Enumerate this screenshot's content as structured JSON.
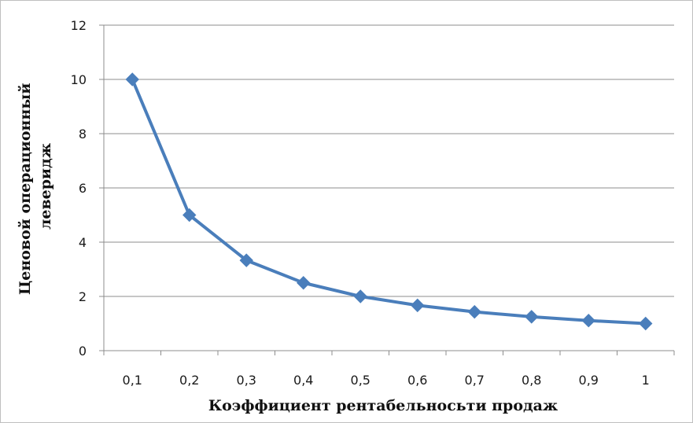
{
  "chart_data": {
    "type": "line",
    "title": "",
    "xlabel": "Коэффициент рентабельносьти продаж",
    "ylabel_lines": [
      "Ценовой операционный",
      "леверидж"
    ],
    "categories": [
      "0,1",
      "0,2",
      "0,3",
      "0,4",
      "0,5",
      "0,6",
      "0,7",
      "0,8",
      "0,9",
      "1"
    ],
    "series": [
      {
        "values": [
          10,
          5,
          3.33,
          2.5,
          2,
          1.67,
          1.43,
          1.25,
          1.11,
          1
        ]
      }
    ],
    "ylim": [
      0,
      12
    ],
    "yticks": [
      0,
      2,
      4,
      6,
      8,
      10,
      12
    ],
    "ytick_labels": [
      "0",
      "2",
      "4",
      "6",
      "8",
      "10",
      "12"
    ],
    "grid": "horizontal",
    "legend": "none",
    "colors": {
      "series": "#4a7ebb",
      "grid": "#8c8c8c",
      "axis": "#8c8c8c"
    }
  }
}
